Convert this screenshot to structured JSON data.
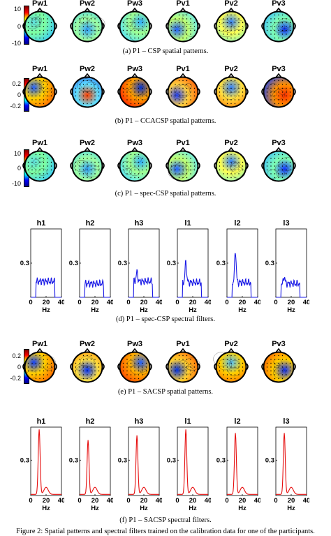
{
  "colorbar_ticks": {
    "a": [
      "10",
      "0",
      "-10"
    ],
    "b": [
      "0.2",
      "0",
      "-0.2"
    ],
    "c": [
      "10",
      "0",
      "-10"
    ],
    "e": [
      "0.2",
      "0",
      "-0.2"
    ]
  },
  "colors": {
    "csp_jet": "jet",
    "spec_blue": "#1a1ae6",
    "sacsp_red": "#e60d0d"
  },
  "spatial_panels": [
    {
      "id": "a",
      "caption": "(a) P1 – CSP spatial patterns.",
      "titles": [
        "Pw1",
        "Pw2",
        "Pw3",
        "Pv1",
        "Pv2",
        "Pv3"
      ],
      "style": "noisy"
    },
    {
      "id": "b",
      "caption": "(b) P1 – CCACSP spatial patterns.",
      "titles": [
        "Pw1",
        "Pw2",
        "Pw3",
        "Pv1",
        "Pv2",
        "Pv3"
      ],
      "style": "smooth"
    },
    {
      "id": "c",
      "caption": "(c) P1 – spec-CSP spatial patterns.",
      "titles": [
        "Pw1",
        "Pw2",
        "Pw3",
        "Pv1",
        "Pv2",
        "Pv3"
      ],
      "style": "noisy"
    },
    {
      "id": "e",
      "caption": "(e) P1 – SACSP spatial patterns.",
      "titles": [
        "Pw1",
        "Pw2",
        "Pw3",
        "Pv1",
        "Pv2",
        "Pv3"
      ],
      "style": "smooth2"
    }
  ],
  "filter_panels": [
    {
      "id": "d",
      "caption": "(d) P1 – spec-CSP spectral filters.",
      "titles": [
        "h1",
        "h2",
        "h3",
        "l1",
        "l2",
        "l3"
      ],
      "color": "#1a1ae6",
      "xlabel": "Hz",
      "xticks": [
        "0",
        "20",
        "40"
      ],
      "ytick": "0.3"
    },
    {
      "id": "f",
      "caption": "(f) P1 – SACSP spectral filters.",
      "titles": [
        "h1",
        "h2",
        "h3",
        "l1",
        "l2",
        "l3"
      ],
      "color": "#e60d0d",
      "xlabel": "Hz",
      "xticks": [
        "0",
        "20",
        "40"
      ],
      "ytick": "0.3"
    }
  ],
  "figure_caption": "Figure 2: Spatial patterns and spectral filters trained on the calibration data for one of the participants."
}
